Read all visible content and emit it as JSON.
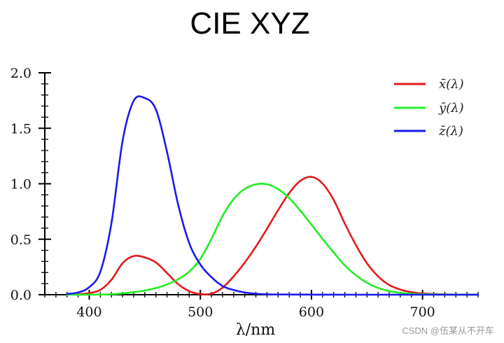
{
  "chart_data": {
    "type": "line",
    "title": "CIE XYZ",
    "xlabel": "λ/nm",
    "ylabel": "",
    "xlim": [
      360,
      750
    ],
    "ylim": [
      0,
      2.0
    ],
    "xticks": [
      400,
      500,
      600,
      700
    ],
    "xtick_labels": [
      "400",
      "500",
      "600",
      "700"
    ],
    "yticks": [
      0.0,
      0.5,
      1.0,
      1.5,
      2.0
    ],
    "ytick_labels": [
      "0.0",
      "0.5",
      "1.0",
      "1.5",
      "2.0"
    ],
    "legend_position": "top-right",
    "grid": false,
    "series": [
      {
        "name": "x̄(λ)",
        "color": "#e31a1c",
        "x": [
          380,
          390,
          400,
          410,
          420,
          430,
          440,
          450,
          460,
          470,
          480,
          490,
          500,
          510,
          520,
          530,
          540,
          550,
          560,
          570,
          580,
          590,
          600,
          610,
          620,
          630,
          640,
          650,
          660,
          670,
          680,
          690,
          700,
          720,
          750
        ],
        "values": [
          0.0014,
          0.0042,
          0.0143,
          0.0435,
          0.1344,
          0.2839,
          0.3483,
          0.3362,
          0.2908,
          0.1954,
          0.0956,
          0.032,
          0.0049,
          0.0093,
          0.0633,
          0.1655,
          0.2904,
          0.4334,
          0.5945,
          0.7621,
          0.9163,
          1.0263,
          1.0622,
          1.0026,
          0.8544,
          0.6424,
          0.4479,
          0.2835,
          0.1649,
          0.0874,
          0.0468,
          0.0227,
          0.0114,
          0.0028,
          0.0003
        ]
      },
      {
        "name": "ȳ(λ)",
        "color": "#22ee22",
        "x": [
          380,
          390,
          400,
          410,
          420,
          430,
          440,
          450,
          460,
          470,
          480,
          490,
          500,
          510,
          520,
          530,
          540,
          550,
          560,
          570,
          580,
          590,
          600,
          610,
          620,
          630,
          640,
          650,
          660,
          670,
          680,
          690,
          700,
          720,
          750
        ],
        "values": [
          0.0,
          0.0001,
          0.0004,
          0.0012,
          0.004,
          0.0116,
          0.023,
          0.038,
          0.06,
          0.091,
          0.139,
          0.208,
          0.323,
          0.503,
          0.71,
          0.862,
          0.954,
          0.995,
          0.995,
          0.952,
          0.87,
          0.757,
          0.631,
          0.503,
          0.381,
          0.265,
          0.175,
          0.107,
          0.061,
          0.032,
          0.017,
          0.0082,
          0.0041,
          0.001,
          0.0001
        ]
      },
      {
        "name": "z̄(λ)",
        "color": "#1a1aee",
        "x": [
          380,
          390,
          400,
          410,
          420,
          430,
          440,
          450,
          460,
          470,
          480,
          490,
          500,
          510,
          520,
          530,
          540,
          550,
          560,
          570,
          580,
          590,
          600,
          610,
          620,
          630,
          640,
          650,
          660,
          670,
          680,
          690,
          700,
          720,
          750
        ],
        "values": [
          0.0065,
          0.0201,
          0.0679,
          0.2074,
          0.6456,
          1.3856,
          1.7471,
          1.7721,
          1.6692,
          1.2876,
          0.813,
          0.4652,
          0.272,
          0.1582,
          0.0782,
          0.0422,
          0.0203,
          0.0087,
          0.0039,
          0.0021,
          0.0017,
          0.0011,
          0.0008,
          0.0003,
          0.0002,
          0.0,
          0.0,
          0.0,
          0.0,
          0.0,
          0.0,
          0.0,
          0.0,
          0.0,
          0.0
        ]
      }
    ]
  },
  "watermark": "CSDN @伍某从不开车"
}
